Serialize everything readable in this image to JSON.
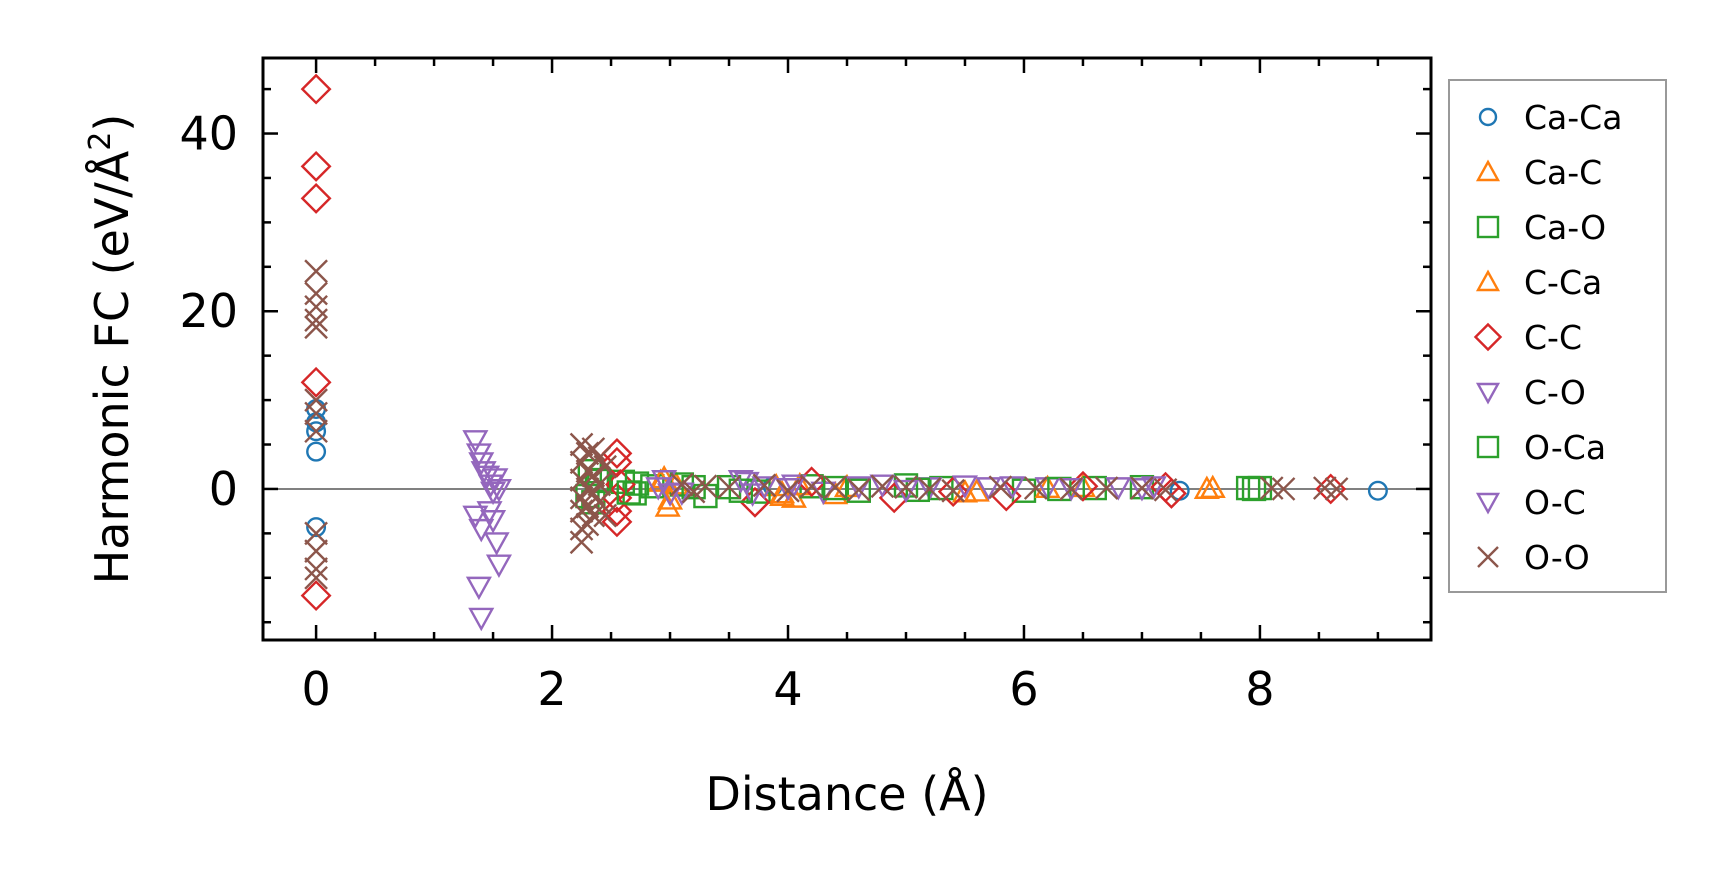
{
  "chart_data": {
    "type": "scatter",
    "title": "",
    "xlabel": "Distance (Å)",
    "ylabel_main": "Harmonic FC (eV/Å",
    "ylabel_sup": "2",
    "ylabel_close": ")",
    "xlim": [
      -0.45,
      9.45
    ],
    "ylim": [
      -17,
      48.5
    ],
    "xticks": [
      0,
      2,
      4,
      6,
      8
    ],
    "xtick_labels": [
      "0",
      "2",
      "4",
      "6",
      "8"
    ],
    "yticks": [
      0,
      20,
      40
    ],
    "ytick_labels": [
      "0",
      "20",
      "40"
    ],
    "x_minor_step": 0.5,
    "y_minor_step": 5,
    "zero_line": true,
    "legend_position": "outside-right",
    "series": [
      {
        "name": "Ca-Ca",
        "marker": "circle",
        "color": "#1f77b4",
        "x": [
          0,
          0,
          0,
          0,
          0,
          3.87,
          7.32,
          9.0
        ],
        "y": [
          9,
          7.5,
          6.5,
          4.2,
          -4.3,
          0.3,
          -0.2,
          -0.2
        ]
      },
      {
        "name": "Ca-C",
        "marker": "triangle-up",
        "color": "#ff7f0e",
        "x": [
          2.95,
          2.98,
          3.05,
          3.9,
          3.95,
          4.05,
          4.4,
          5.5,
          6.5,
          7.6
        ],
        "y": [
          1.2,
          -2.0,
          0.5,
          0.3,
          -0.8,
          -1.0,
          -0.6,
          -0.4,
          0.2,
          0.1
        ]
      },
      {
        "name": "Ca-O",
        "marker": "square",
        "color": "#2ca02c",
        "x": [
          2.32,
          2.35,
          2.38,
          2.6,
          2.7,
          2.85,
          3.1,
          3.3,
          3.5,
          3.75,
          4.2,
          4.6,
          5.0,
          5.3,
          6.0,
          6.6,
          7.0,
          7.9,
          8.0
        ],
        "y": [
          2.0,
          -1.5,
          1.0,
          0.8,
          -0.5,
          0.3,
          0.5,
          -0.8,
          0.2,
          -0.3,
          0.3,
          -0.2,
          0.4,
          0.1,
          -0.2,
          0.1,
          0.2,
          0.1,
          0.1
        ]
      },
      {
        "name": "C-Ca",
        "marker": "triangle-up",
        "color": "#ff7f0e",
        "x": [
          2.92,
          3.0,
          3.95,
          4.1,
          4.5,
          5.6,
          6.2,
          7.55
        ],
        "y": [
          0.8,
          -1.2,
          -0.5,
          0.4,
          0.2,
          -0.3,
          0.1,
          0.0
        ]
      },
      {
        "name": "C-C",
        "marker": "diamond",
        "color": "#d62728",
        "x": [
          0,
          0,
          0,
          0,
          0,
          2.55,
          2.55,
          2.55,
          2.55,
          2.55,
          2.58,
          3.72,
          4.2,
          4.9,
          5.4,
          5.85,
          6.5,
          7.2,
          7.25,
          8.6
        ],
        "y": [
          45,
          36.3,
          32.7,
          12,
          -12,
          4.0,
          3.0,
          -1.0,
          -2.5,
          -3.7,
          0.5,
          -1.5,
          0.8,
          -1.0,
          -0.3,
          -0.8,
          0.3,
          0.2,
          -0.5,
          0.0
        ]
      },
      {
        "name": "C-O",
        "marker": "triangle-down",
        "color": "#9467bd",
        "x": [
          1.35,
          1.38,
          1.4,
          1.45,
          1.48,
          1.5,
          1.52,
          1.55,
          1.35,
          1.4,
          1.5,
          1.55,
          1.38,
          1.4,
          2.95,
          3.0,
          3.6,
          3.7,
          3.8,
          4.05,
          4.3,
          4.8,
          5.2,
          5.5,
          5.9,
          6.2,
          6.8,
          7.1
        ],
        "y": [
          5.5,
          4.0,
          3.0,
          1.5,
          0.5,
          -0.3,
          1.2,
          0.0,
          -3.0,
          -4.5,
          -3.5,
          -8.5,
          -11.0,
          -14.5,
          1.0,
          -0.5,
          1.0,
          -0.5,
          0.3,
          0.5,
          -0.3,
          0.5,
          0.2,
          0.4,
          0.3,
          0.2,
          0.2,
          0.3
        ]
      },
      {
        "name": "O-Ca",
        "marker": "square",
        "color": "#2ca02c",
        "x": [
          2.3,
          2.4,
          2.65,
          2.72,
          3.2,
          3.6,
          4.4,
          5.1,
          6.3,
          7.95
        ],
        "y": [
          -0.8,
          0.9,
          -0.4,
          0.6,
          0.2,
          -0.2,
          0.1,
          -0.1,
          0.0,
          0.0
        ]
      },
      {
        "name": "O-C",
        "marker": "triangle-down",
        "color": "#9467bd",
        "x": [
          1.42,
          1.47,
          1.53,
          2.9,
          3.1,
          3.65,
          4.0,
          4.6,
          5.0,
          5.7,
          6.4,
          7.0
        ],
        "y": [
          2.0,
          -2.5,
          -6.0,
          0.2,
          -0.4,
          0.8,
          0.1,
          0.3,
          -0.1,
          0.2,
          0.1,
          0.1
        ]
      },
      {
        "name": "O-O",
        "marker": "x",
        "color": "#8c564b",
        "x": [
          0,
          0,
          0,
          0,
          0,
          0,
          0,
          0,
          0,
          0,
          0,
          0,
          2.25,
          2.25,
          2.25,
          2.25,
          2.25,
          2.25,
          2.25,
          2.3,
          2.3,
          2.3,
          2.3,
          2.3,
          2.35,
          2.35,
          2.35,
          2.35,
          2.4,
          2.4,
          2.4,
          2.45,
          2.45,
          3.1,
          3.2,
          3.3,
          3.5,
          3.8,
          4.0,
          4.2,
          4.4,
          4.6,
          4.8,
          5.0,
          5.2,
          5.4,
          5.8,
          6.1,
          6.4,
          6.7,
          7.0,
          7.2,
          8.1,
          8.2,
          8.55,
          8.65
        ],
        "y": [
          24.5,
          22,
          20.5,
          19,
          18.2,
          10,
          8.5,
          6.5,
          -5,
          -7,
          -9,
          -10,
          5.0,
          3.0,
          1.0,
          -1.0,
          -2.5,
          -4.5,
          -6.0,
          4.0,
          2.0,
          0.0,
          -2.0,
          -4.0,
          4.5,
          1.5,
          -0.5,
          -3.0,
          3.5,
          0.5,
          -1.5,
          2.5,
          -3.0,
          0.5,
          -0.3,
          0.3,
          0.2,
          0.4,
          -0.2,
          0.3,
          0.2,
          -0.1,
          0.3,
          0.2,
          0.0,
          -0.2,
          0.2,
          0.1,
          0.0,
          0.1,
          0.1,
          -0.1,
          0.1,
          0.0,
          0.1,
          0.0
        ]
      }
    ]
  }
}
